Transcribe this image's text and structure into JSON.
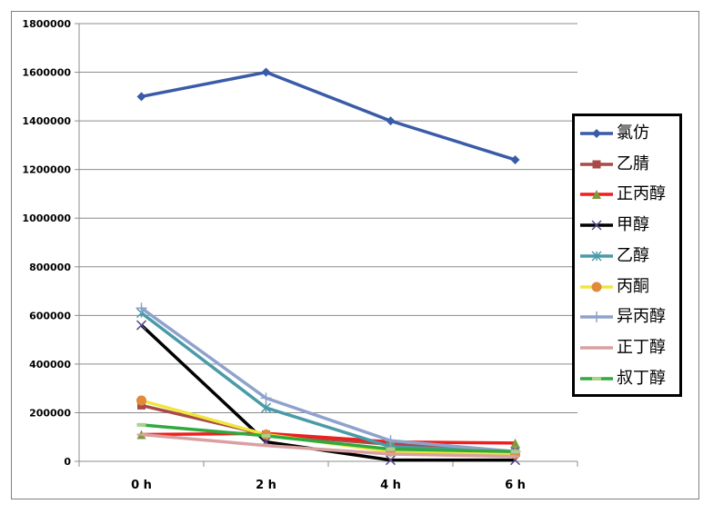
{
  "chart_data": {
    "type": "line",
    "categories": [
      "0 h",
      "2 h",
      "4 h",
      "6 h"
    ],
    "ylim": [
      0,
      1800000
    ],
    "yticks": [
      "0",
      "200000",
      "400000",
      "600000",
      "800000",
      "1000000",
      "1200000",
      "1400000",
      "1600000",
      "1800000"
    ],
    "grid": true,
    "legend_position": "right",
    "series": [
      {
        "name": "氯仿",
        "color": "#3a5ba8",
        "marker": "diamond",
        "values": [
          1500000,
          1600000,
          1400000,
          1240000
        ]
      },
      {
        "name": "乙腈",
        "color": "#a84a47",
        "marker": "square",
        "values": [
          230000,
          110000,
          70000,
          40000
        ]
      },
      {
        "name": "正丙醇",
        "color": "#ee1f1f",
        "marker": "triangle",
        "values": [
          110000,
          115000,
          80000,
          75000
        ]
      },
      {
        "name": "甲醇",
        "color": "#000000",
        "marker": "x",
        "values": [
          560000,
          80000,
          5000,
          5000
        ]
      },
      {
        "name": "乙醇",
        "color": "#4a9aa8",
        "marker": "star",
        "values": [
          610000,
          220000,
          60000,
          40000
        ]
      },
      {
        "name": "丙酮",
        "color": "#f0e640",
        "marker": "circle",
        "values": [
          250000,
          110000,
          40000,
          30000
        ]
      },
      {
        "name": "异丙醇",
        "color": "#8fa2cc",
        "marker": "plus",
        "values": [
          630000,
          260000,
          85000,
          40000
        ]
      },
      {
        "name": "正丁醇",
        "color": "#d9a0a0",
        "marker": "dash",
        "values": [
          110000,
          65000,
          30000,
          20000
        ]
      },
      {
        "name": "叔丁醇",
        "color": "#2faa3f",
        "marker": "bar",
        "values": [
          150000,
          105000,
          50000,
          40000
        ]
      }
    ]
  }
}
